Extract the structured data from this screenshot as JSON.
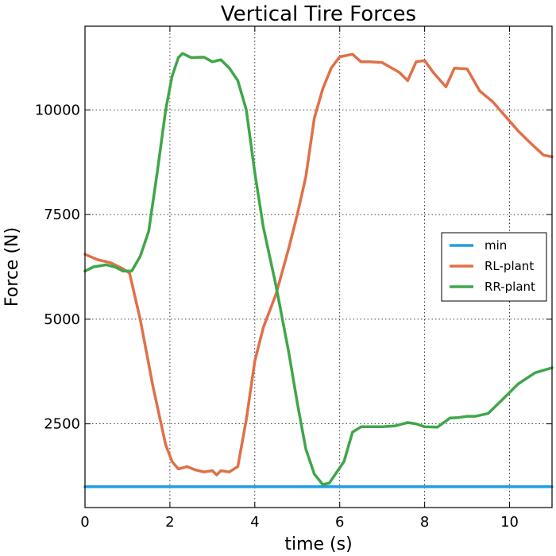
{
  "chart_data": {
    "type": "line",
    "title": "Vertical Tire Forces",
    "xlabel": "time (s)",
    "ylabel": "Force (N)",
    "xlim": [
      0,
      11
    ],
    "ylim": [
      500,
      12000
    ],
    "xticks": [
      0,
      2,
      4,
      6,
      8,
      10
    ],
    "yticks": [
      2500,
      5000,
      7500,
      10000
    ],
    "grid": true,
    "legend_position": "center-right",
    "series": [
      {
        "name": "min",
        "color": "#1f9ee3",
        "x": [
          0,
          11
        ],
        "y": [
          1000,
          1000
        ]
      },
      {
        "name": "RL-plant",
        "color": "#e07048",
        "x": [
          0,
          0.3,
          0.6,
          0.9,
          1.05,
          1.3,
          1.6,
          1.9,
          2.05,
          2.2,
          2.4,
          2.6,
          2.8,
          3.0,
          3.1,
          3.2,
          3.4,
          3.6,
          3.8,
          4.0,
          4.2,
          4.5,
          4.8,
          5.0,
          5.2,
          5.4,
          5.6,
          5.8,
          6.0,
          6.3,
          6.5,
          6.7,
          7.0,
          7.4,
          7.6,
          7.8,
          8.0,
          8.2,
          8.5,
          8.7,
          9.0,
          9.3,
          9.6,
          9.9,
          10.2,
          10.5,
          10.8,
          11.0
        ],
        "y": [
          6550,
          6420,
          6350,
          6200,
          6100,
          5000,
          3400,
          2000,
          1600,
          1420,
          1480,
          1400,
          1350,
          1380,
          1280,
          1380,
          1350,
          1480,
          2600,
          4000,
          4800,
          5600,
          6700,
          7500,
          8400,
          9800,
          10500,
          11000,
          11270,
          11330,
          11150,
          11150,
          11130,
          10900,
          10700,
          11150,
          11180,
          10900,
          10550,
          11000,
          10980,
          10450,
          10200,
          9850,
          9500,
          9200,
          8920,
          8880
        ]
      },
      {
        "name": "RR-plant",
        "color": "#40a64a",
        "x": [
          0,
          0.2,
          0.5,
          0.7,
          0.9,
          1.1,
          1.3,
          1.5,
          1.7,
          1.9,
          2.05,
          2.2,
          2.3,
          2.5,
          2.8,
          3.0,
          3.2,
          3.4,
          3.6,
          3.8,
          4.0,
          4.2,
          4.5,
          4.8,
          5.0,
          5.2,
          5.4,
          5.6,
          5.75,
          5.9,
          6.1,
          6.3,
          6.5,
          7.0,
          7.3,
          7.6,
          7.8,
          8.0,
          8.3,
          8.6,
          8.8,
          9.0,
          9.2,
          9.5,
          9.8,
          10.2,
          10.6,
          11.0
        ],
        "y": [
          6150,
          6250,
          6300,
          6250,
          6150,
          6150,
          6500,
          7100,
          8500,
          10000,
          10800,
          11250,
          11350,
          11250,
          11260,
          11150,
          11200,
          11000,
          10700,
          10000,
          8500,
          7200,
          5800,
          4200,
          3000,
          1900,
          1300,
          1050,
          1080,
          1300,
          1600,
          2300,
          2430,
          2430,
          2450,
          2530,
          2500,
          2430,
          2420,
          2640,
          2650,
          2680,
          2680,
          2750,
          3050,
          3450,
          3720,
          3840
        ]
      }
    ]
  }
}
